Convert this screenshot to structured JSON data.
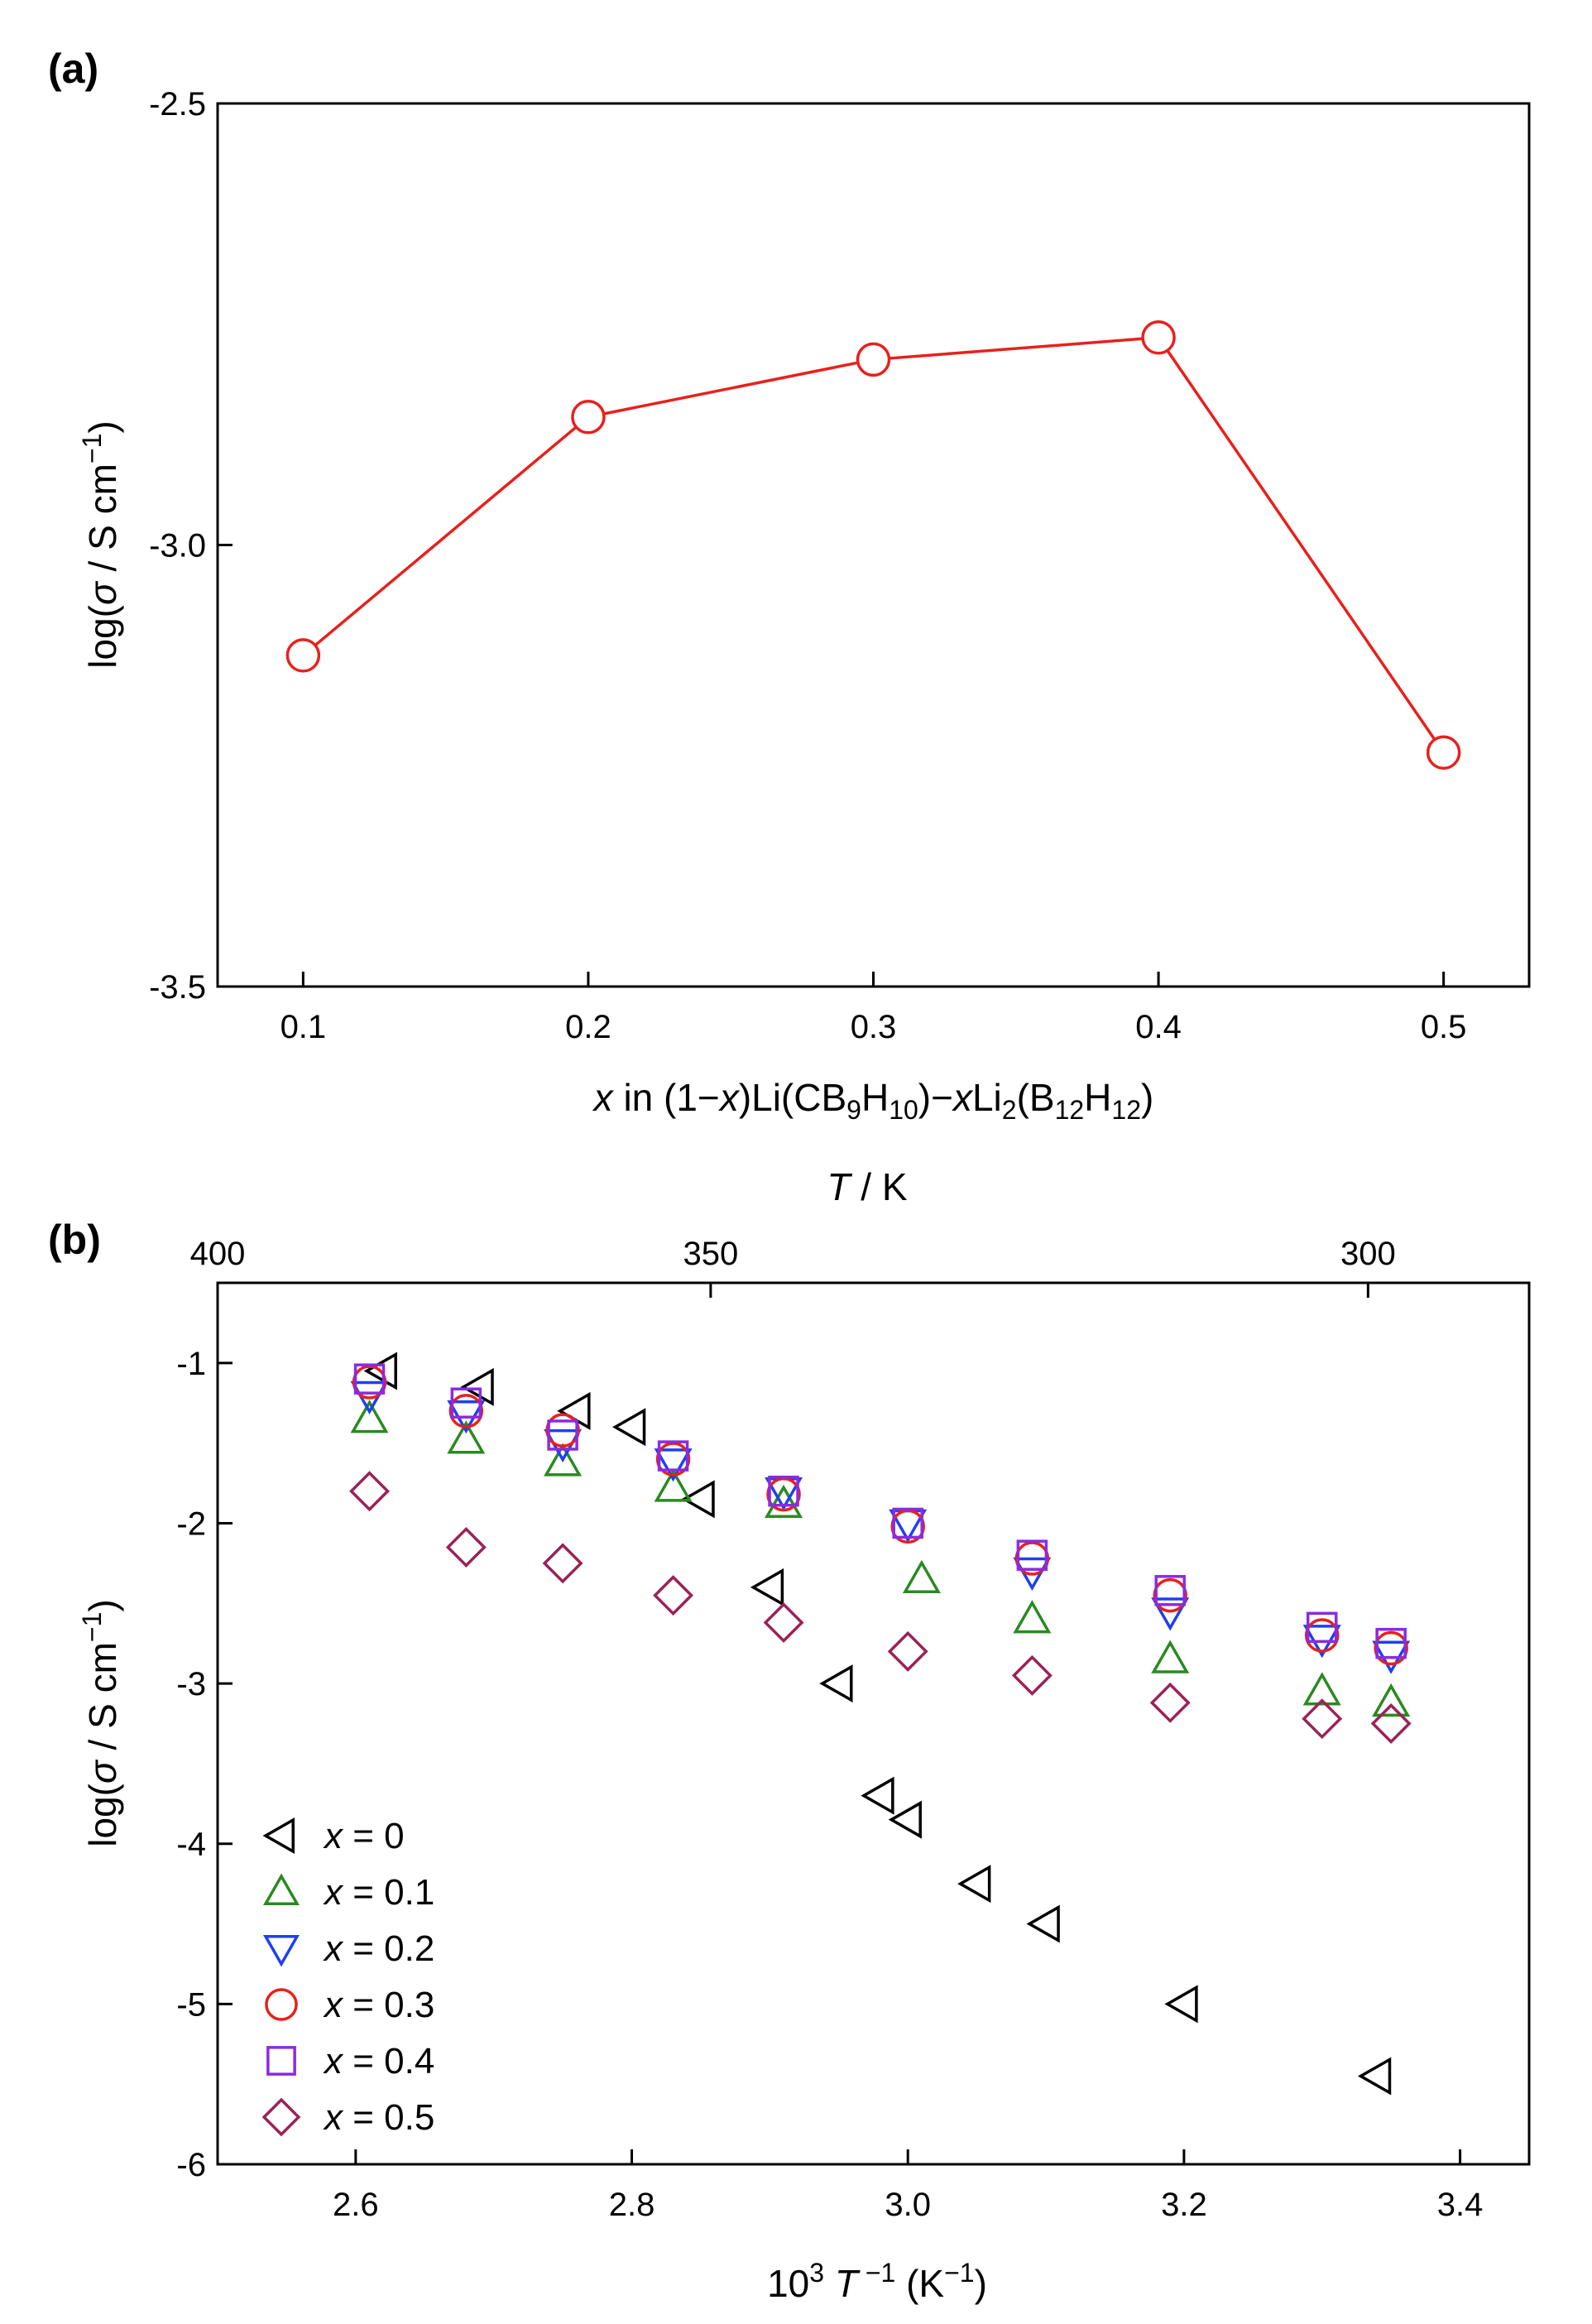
{
  "chart_data": [
    {
      "panel_label": "(a)",
      "type": "line",
      "x": [
        0.1,
        0.2,
        0.3,
        0.4,
        0.5
      ],
      "series": [
        {
          "name": "log σ",
          "values": [
            -3.125,
            -2.855,
            -2.79,
            -2.765,
            -3.235
          ],
          "color": "#e8201c"
        }
      ],
      "xlim": [
        0.07,
        0.53
      ],
      "ylim": [
        -3.5,
        -2.5
      ],
      "xticks": [
        0.1,
        0.2,
        0.3,
        0.4,
        0.5
      ],
      "xtick_labels": [
        "0.1",
        "0.2",
        "0.3",
        "0.4",
        "0.5"
      ],
      "yticks": [
        -3.5,
        -3.0,
        -2.5
      ],
      "ytick_labels": [
        "-3.5",
        "-3.0",
        "-2.5"
      ],
      "xlabel": {
        "x": "x",
        "in": " in (1−",
        "x2": "x",
        "mid": ")Li(CB",
        "s9": "9",
        "h": "H",
        "s10": "10",
        "dash": ")−",
        "x3": "x",
        "li": "Li",
        "s2": "2",
        "b": "(B",
        "s12a": "12",
        "h2": "H",
        "s12b": "12",
        "end": ")"
      },
      "ylabel": {
        "pre": "log(",
        "sigma": "σ",
        "unit": " / S cm",
        "exp": "−1",
        "end": ")"
      }
    },
    {
      "panel_label": "(b)",
      "type": "scatter",
      "xlim": [
        2.5,
        3.45
      ],
      "ylim": [
        -6,
        -0.5
      ],
      "xticks": [
        2.6,
        2.8,
        3.0,
        3.2,
        3.4
      ],
      "xtick_labels": [
        "2.6",
        "2.8",
        "3.0",
        "3.2",
        "3.4"
      ],
      "yticks": [
        -6,
        -5,
        -4,
        -3,
        -2,
        -1
      ],
      "ytick_labels": [
        "-6",
        "-5",
        "-4",
        "-3",
        "-2",
        "-1"
      ],
      "top_axis": {
        "title_var": "T",
        "title_unit": " / K",
        "ticks": [
          400,
          350,
          300
        ],
        "tick_labels": [
          "400",
          "350",
          "300"
        ]
      },
      "xlabel": {
        "pre": "10",
        "exp1": "3",
        "var": " T",
        "exp2": " −1",
        "unit": " (K",
        "exp3": "−1",
        "end": ")"
      },
      "ylabel": {
        "pre": "log(",
        "sigma": "σ",
        "unit": " / S cm",
        "exp": "−1",
        "end": ")"
      },
      "series": [
        {
          "name": "x = 0",
          "var": "x",
          "rest": " = 0",
          "marker": "triangle-left",
          "color": "#000000",
          "x": [
            2.62,
            2.69,
            2.76,
            2.8,
            2.85,
            2.9,
            2.95,
            2.98,
            3.0,
            3.05,
            3.1,
            3.2,
            3.34
          ],
          "y": [
            -1.05,
            -1.15,
            -1.3,
            -1.4,
            -1.85,
            -2.4,
            -3.0,
            -3.7,
            -3.85,
            -4.25,
            -4.5,
            -5.0,
            -5.45
          ]
        },
        {
          "name": "x = 0.1",
          "var": "x",
          "rest": " = 0.1",
          "marker": "triangle-up",
          "color": "#2a8a20",
          "x": [
            2.61,
            2.68,
            2.75,
            2.83,
            2.91,
            3.01,
            3.09,
            3.19,
            3.3,
            3.35
          ],
          "y": [
            -1.35,
            -1.48,
            -1.62,
            -1.78,
            -1.88,
            -2.35,
            -2.6,
            -2.85,
            -3.05,
            -3.12
          ]
        },
        {
          "name": "x = 0.2",
          "var": "x",
          "rest": " = 0.2",
          "marker": "triangle-down",
          "color": "#1f3ff0",
          "x": [
            2.61,
            2.68,
            2.75,
            2.83,
            2.91,
            3.0,
            3.09,
            3.19,
            3.3,
            3.35
          ],
          "y": [
            -1.2,
            -1.32,
            -1.5,
            -1.62,
            -1.8,
            -2.0,
            -2.3,
            -2.55,
            -2.72,
            -2.82
          ]
        },
        {
          "name": "x = 0.3",
          "var": "x",
          "rest": " = 0.3",
          "marker": "circle",
          "color": "#e8201c",
          "x": [
            2.61,
            2.68,
            2.75,
            2.83,
            2.91,
            3.0,
            3.09,
            3.19,
            3.3,
            3.35
          ],
          "y": [
            -1.12,
            -1.3,
            -1.42,
            -1.6,
            -1.82,
            -2.02,
            -2.22,
            -2.45,
            -2.7,
            -2.78
          ]
        },
        {
          "name": "x = 0.4",
          "var": "x",
          "rest": " = 0.4",
          "marker": "square",
          "color": "#8a2be2",
          "x": [
            2.61,
            2.68,
            2.75,
            2.83,
            2.91,
            3.0,
            3.09,
            3.19,
            3.3,
            3.35
          ],
          "y": [
            -1.1,
            -1.25,
            -1.45,
            -1.58,
            -1.8,
            -2.0,
            -2.2,
            -2.42,
            -2.65,
            -2.75
          ]
        },
        {
          "name": "x = 0.5",
          "var": "x",
          "rest": " = 0.5",
          "marker": "diamond",
          "color": "#9b2257",
          "x": [
            2.61,
            2.68,
            2.75,
            2.83,
            2.91,
            3.0,
            3.09,
            3.19,
            3.3,
            3.35
          ],
          "y": [
            -1.8,
            -2.15,
            -2.25,
            -2.45,
            -2.62,
            -2.8,
            -2.95,
            -3.12,
            -3.22,
            -3.25
          ]
        }
      ],
      "legend_position": "bottom-left"
    }
  ]
}
